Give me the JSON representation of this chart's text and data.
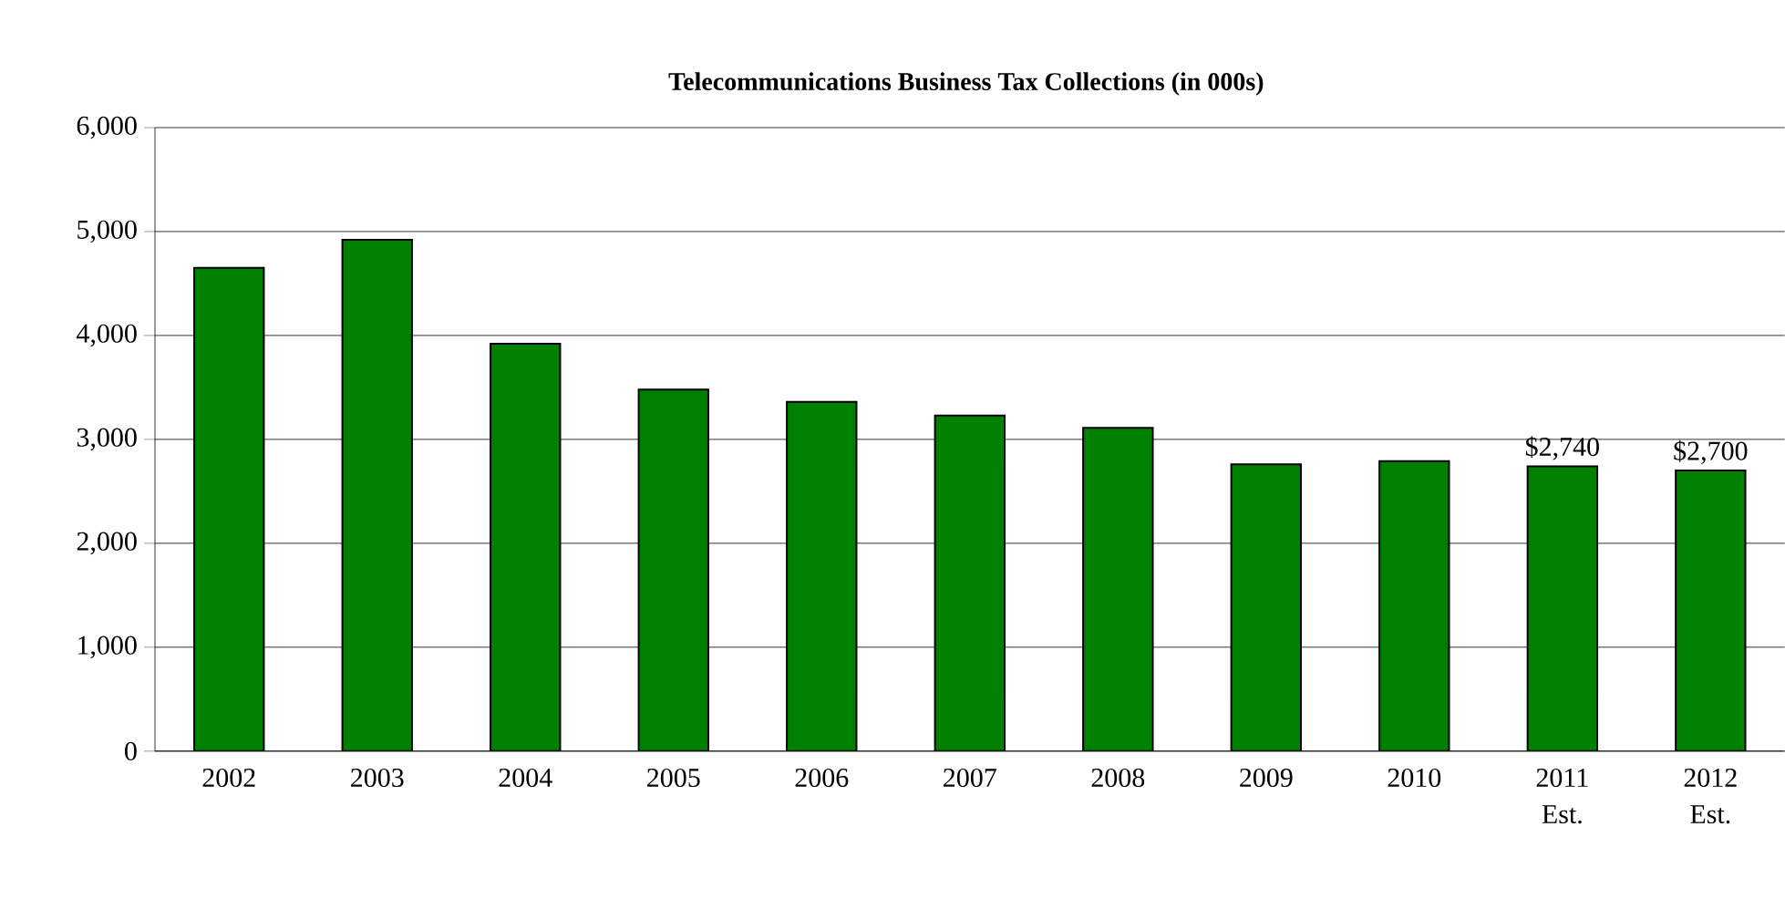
{
  "chart_data": {
    "type": "bar",
    "title": "Telecommunications Business Tax Collections (in 000s)",
    "categories": [
      "2002",
      "2003",
      "2004",
      "2005",
      "2006",
      "2007",
      "2008",
      "2009",
      "2010",
      "2011 Est.",
      "2012 Est."
    ],
    "values": [
      4650,
      4920,
      3920,
      3480,
      3360,
      3230,
      3110,
      2760,
      2790,
      2740,
      2700
    ],
    "value_labels": [
      null,
      null,
      null,
      null,
      null,
      null,
      null,
      null,
      null,
      "$2,740",
      "$2,700"
    ],
    "color": "#008000",
    "ylim": [
      0,
      6000
    ],
    "yticks": [
      {
        "value": 0,
        "label": "0"
      },
      {
        "value": 1000,
        "label": "1,000"
      },
      {
        "value": 2000,
        "label": "2,000"
      },
      {
        "value": 3000,
        "label": "3,000"
      },
      {
        "value": 4000,
        "label": "4,000"
      },
      {
        "value": 5000,
        "label": "5,000"
      },
      {
        "value": 6000,
        "label": "6,000"
      }
    ],
    "grid": "y"
  }
}
